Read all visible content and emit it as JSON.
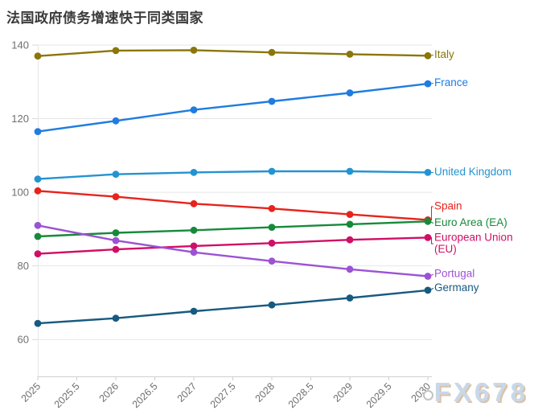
{
  "title": "法国政府债务增速快于同类国家",
  "watermark": "FX678",
  "chart_data": {
    "type": "line",
    "x": [
      2025,
      2026,
      2027,
      2028,
      2029,
      2030
    ],
    "x_tick_labels": [
      "2025",
      "2025.5",
      "2026",
      "2026.5",
      "2027",
      "2027.5",
      "2028",
      "2028.5",
      "2029",
      "2029.5",
      "2030"
    ],
    "y_ticks": [
      60,
      80,
      100,
      120,
      140
    ],
    "ylim": [
      50,
      140
    ],
    "grid": "horizontal",
    "legend_position": "right-end-labels",
    "series": [
      {
        "name": "Italy",
        "color": "#8a760a",
        "values": [
          137.0,
          138.5,
          138.6,
          138.0,
          137.5,
          137.1
        ]
      },
      {
        "name": "France",
        "color": "#1f7ce0",
        "values": [
          116.5,
          119.4,
          122.4,
          124.7,
          127.0,
          129.5
        ]
      },
      {
        "name": "United Kingdom",
        "color": "#2493d1",
        "values": [
          103.6,
          104.9,
          105.4,
          105.7,
          105.7,
          105.4
        ]
      },
      {
        "name": "Spain",
        "color": "#e8231c",
        "values": [
          100.4,
          98.8,
          96.9,
          95.6,
          94.0,
          92.5
        ]
      },
      {
        "name": "Euro Area (EA)",
        "color": "#178a3a",
        "values": [
          88.0,
          89.0,
          89.7,
          90.5,
          91.3,
          92.1
        ]
      },
      {
        "name": "European Union (EU)",
        "color": "#d00f66",
        "values": [
          83.3,
          84.5,
          85.4,
          86.2,
          87.1,
          87.7
        ]
      },
      {
        "name": "Portugal",
        "color": "#9c52d4",
        "values": [
          91.0,
          86.9,
          83.7,
          81.3,
          79.1,
          77.2
        ]
      },
      {
        "name": "Germany",
        "color": "#175a80",
        "values": [
          64.4,
          65.8,
          67.7,
          69.4,
          71.3,
          73.4
        ]
      }
    ]
  }
}
